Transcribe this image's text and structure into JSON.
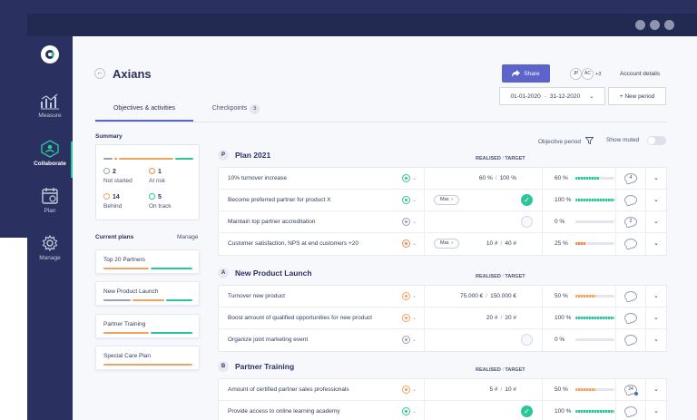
{
  "app": {
    "title": "Axians",
    "back_label": "←"
  },
  "nav": [
    {
      "label": "Measure",
      "icon": "chart-icon"
    },
    {
      "label": "Collaborate",
      "icon": "collaborate-icon"
    },
    {
      "label": "Plan",
      "icon": "calendar-icon"
    },
    {
      "label": "Manage",
      "icon": "gear-icon"
    }
  ],
  "header": {
    "share_label": "Share",
    "avatars": [
      "JP",
      "AC"
    ],
    "more_count": "+3",
    "account_label": "Account details",
    "date_start": "01-01-2020",
    "date_sep": "-",
    "date_end": "31-12-2020",
    "new_period_label": "+ New period"
  },
  "tabs": [
    {
      "label": "Objectives & activities",
      "active": true
    },
    {
      "label": "Checkpoints",
      "badge": "3"
    }
  ],
  "summary": {
    "title": "Summary",
    "stats": [
      {
        "value": "2",
        "label": "Not started",
        "color": "#9aa0b5"
      },
      {
        "value": "1",
        "label": "At risk",
        "color": "#f08a4b"
      },
      {
        "value": "14",
        "label": "Behind",
        "color": "#f0a35e"
      },
      {
        "value": "5",
        "label": "On track",
        "color": "#2bc79b"
      }
    ]
  },
  "current_plans": {
    "title": "Current plans",
    "manage_label": "Manage",
    "items": [
      {
        "name": "Top 20 Partners"
      },
      {
        "name": "New Product Launch"
      },
      {
        "name": "Partner Training"
      },
      {
        "name": "Special Care Plan"
      }
    ]
  },
  "controls": {
    "objective_period_label": "Objective period",
    "show_muted_label": "Show muted"
  },
  "sections": [
    {
      "letter": "P",
      "name": "Plan 2021",
      "realised_label": "REALISED",
      "sep": "/",
      "target_label": "TARGET",
      "rows": [
        {
          "name": "10% turnover increase",
          "status": "#2bc79b",
          "realised": "60 %",
          "target": "100 %",
          "pct": "60 %",
          "progress": 0.6,
          "bar_color": "#2bc79b",
          "comments": "4"
        },
        {
          "name": "Become preferred partner for product X",
          "status": "#2bc79b",
          "chip": "Mar.",
          "done": true,
          "pct": "100 %",
          "progress": 1.0,
          "bar_color": "#2bc79b",
          "comments": ""
        },
        {
          "name": "Maintain top partner accreditation",
          "status": "#9aa0b5",
          "empty": true,
          "pct": "0 %",
          "progress": 0,
          "bar_color": "#2bc79b",
          "comments": "2"
        },
        {
          "name": "Customer satisfaction, NPS at end customers +20",
          "status": "#f08a4b",
          "chip": "Mar.",
          "realised": "10 #",
          "target": "40 #",
          "pct": "25 %",
          "progress": 0.25,
          "bar_color": "#f08a4b",
          "comments": ""
        }
      ]
    },
    {
      "letter": "A",
      "name": "New Product Launch",
      "realised_label": "REALISED",
      "sep": "/",
      "target_label": "TARGET",
      "rows": [
        {
          "name": "Turnover new product",
          "status": "#f0a35e",
          "realised": "75.000 €",
          "target": "150.000 €",
          "pct": "50 %",
          "progress": 0.5,
          "bar_color": "#f0a35e",
          "comments": ""
        },
        {
          "name": "Boost amount of qualified opportunities for new product",
          "status": "#f0a35e",
          "realised": "20 #",
          "target": "20 #",
          "pct": "100 %",
          "progress": 1.0,
          "bar_color": "#2bc79b",
          "comments": ""
        },
        {
          "name": "Organize joint marketing event",
          "status": "#9aa0b5",
          "empty": true,
          "pct": "0 %",
          "progress": 0,
          "bar_color": "#2bc79b",
          "comments": ""
        }
      ]
    },
    {
      "letter": "B",
      "name": "Partner Training",
      "realised_label": "REALISED",
      "sep": "/",
      "target_label": "TARGET",
      "rows": [
        {
          "name": "Amount of certified partner sales professionals",
          "status": "#f0a35e",
          "realised": "5 #",
          "target": "10 #",
          "pct": "50 %",
          "progress": 0.5,
          "bar_color": "#f0a35e",
          "comments": "24",
          "new_comment": true
        },
        {
          "name": "Provide access to online learning academy",
          "status": "#2bc79b",
          "done": true,
          "pct": "100 %",
          "progress": 1.0,
          "bar_color": "#2bc79b",
          "comments": ""
        }
      ]
    }
  ]
}
